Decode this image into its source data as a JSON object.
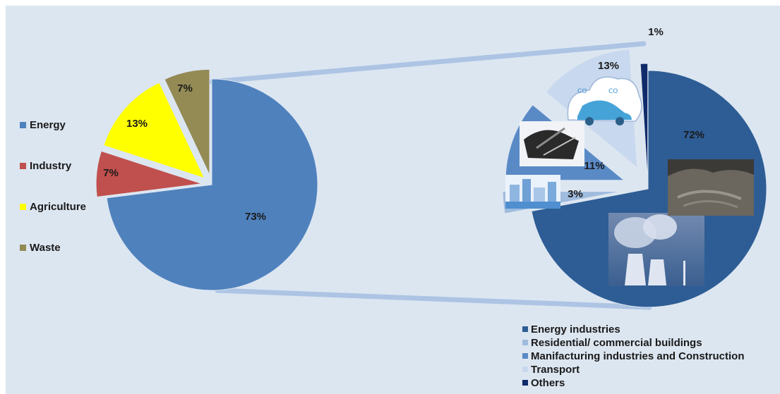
{
  "colors": {
    "background": "#dce6f1",
    "energy": "#4f81bd",
    "industry": "#c0504d",
    "agriculture": "#ffff00",
    "waste": "#948a54",
    "energy_industries": "#2e5d95",
    "residential": "#9fbbdd",
    "manufacturing": "#5a8ac6",
    "transport": "#c8d8ee",
    "others": "#102b6a"
  },
  "chart_data": [
    {
      "type": "pie",
      "title": "",
      "slices": [
        {
          "label": "Energy",
          "value": 73,
          "text": "73%"
        },
        {
          "label": "Industry",
          "value": 7,
          "text": "7%"
        },
        {
          "label": "Agriculture",
          "value": 13,
          "text": "13%"
        },
        {
          "label": "Waste",
          "value": 7,
          "text": "7%"
        }
      ],
      "legend_position": "left",
      "exploded": true
    },
    {
      "type": "pie",
      "title": "",
      "slices": [
        {
          "label": "Energy industries",
          "value": 72,
          "text": "72%"
        },
        {
          "label": "Residential/ commercial buildings",
          "value": 3,
          "text": "3%"
        },
        {
          "label": "Manifacturing industries and Construction",
          "value": 11,
          "text": "11%"
        },
        {
          "label": "Transport",
          "value": 13,
          "text": "13%"
        },
        {
          "label": "Others",
          "value": 1,
          "text": "1%"
        }
      ],
      "legend_position": "bottom",
      "exploded": true
    }
  ]
}
